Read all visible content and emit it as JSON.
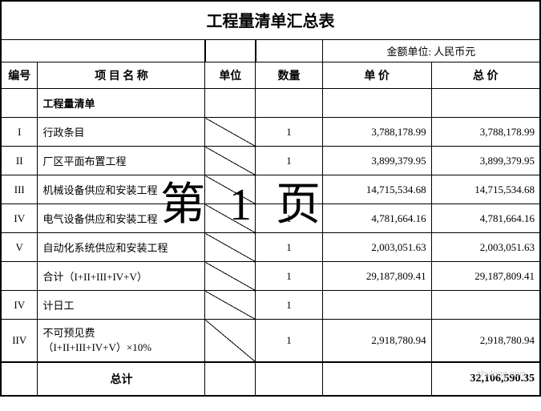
{
  "title": "工程量清单汇总表",
  "currency_unit": "金额单位: 人民币元",
  "headers": {
    "no": "编号",
    "name": "项 目 名 称",
    "unit": "单位",
    "qty": "数量",
    "price": "单 价",
    "total": "总 价"
  },
  "section_label": "工程量清单",
  "rows": [
    {
      "no": "I",
      "name": "行政条目",
      "qty": "1",
      "price": "3,788,178.99",
      "total": "3,788,178.99"
    },
    {
      "no": "II",
      "name": "厂区平面布置工程",
      "qty": "1",
      "price": "3,899,379.95",
      "total": "3,899,379.95"
    },
    {
      "no": "III",
      "name": "机械设备供应和安装工程",
      "qty": "1",
      "price": "14,715,534.68",
      "total": "14,715,534.68"
    },
    {
      "no": "IV",
      "name": "电气设备供应和安装工程",
      "qty": "1",
      "price": "4,781,664.16",
      "total": "4,781,664.16"
    },
    {
      "no": "V",
      "name": "自动化系统供应和安装工程",
      "qty": "1",
      "price": "2,003,051.63",
      "total": "2,003,051.63"
    },
    {
      "no": "",
      "name": "合计（I+II+III+IV+V）",
      "qty": "1",
      "price": "29,187,809.41",
      "total": "29,187,809.41"
    },
    {
      "no": "IV",
      "name": "计日工",
      "qty": "1",
      "price": "",
      "total": ""
    },
    {
      "no": "IIV",
      "name": "不可预见费\n（I+II+III+IV+V）×10%",
      "qty": "1",
      "price": "2,918,780.94",
      "total": "2,918,780.94"
    }
  ],
  "total_label": "总计",
  "grand_total": "32,106,590.35",
  "watermark": "第 1 页",
  "watermark_site": "zhulong.com"
}
